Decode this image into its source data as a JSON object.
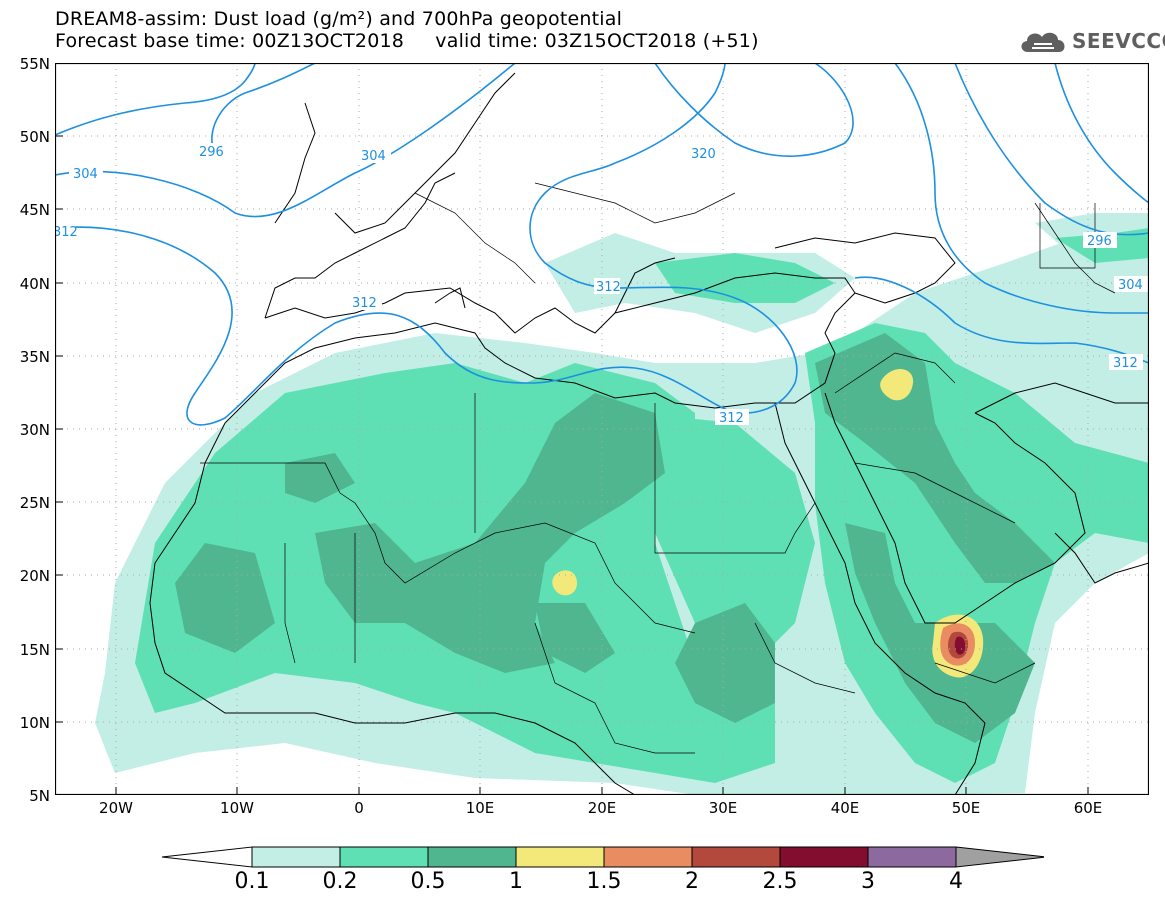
{
  "title": {
    "line1": "DREAM8-assim: Dust load (g/m²) and 700hPa geopotential",
    "line2": "Forecast base time: 00Z13OCT2018     valid time: 03Z15OCT2018 (+51)"
  },
  "logo": {
    "text": "SEEVCCC",
    "icon": "cloud-icon"
  },
  "map": {
    "lat_labels": [
      "55N",
      "50N",
      "45N",
      "40N",
      "35N",
      "30N",
      "25N",
      "20N",
      "15N",
      "10N",
      "5N"
    ],
    "lon_labels": [
      "20W",
      "10W",
      "0",
      "10E",
      "20E",
      "30E",
      "40E",
      "50E",
      "60E"
    ],
    "extent": {
      "lon_min": -25,
      "lon_max": 65,
      "lat_min": 5,
      "lat_max": 55
    },
    "contour_labels": [
      "296",
      "304",
      "304",
      "312",
      "320",
      "312",
      "312",
      "312",
      "296",
      "304",
      "312"
    ],
    "colors": {
      "coast": "#000000",
      "contour": "#1e90e0",
      "gridline": "#aaaaaa"
    }
  },
  "legend": {
    "ticks": [
      "0.1",
      "0.2",
      "0.5",
      "1",
      "1.5",
      "2",
      "2.5",
      "3",
      "4"
    ],
    "colors": [
      "#c2eee6",
      "#5fe0b4",
      "#4fb690",
      "#f2e97a",
      "#e98c62",
      "#b3493d",
      "#820d2e",
      "#8c6a9f"
    ],
    "under_color": "#ffffff",
    "over_color": "#a0a0a0"
  }
}
